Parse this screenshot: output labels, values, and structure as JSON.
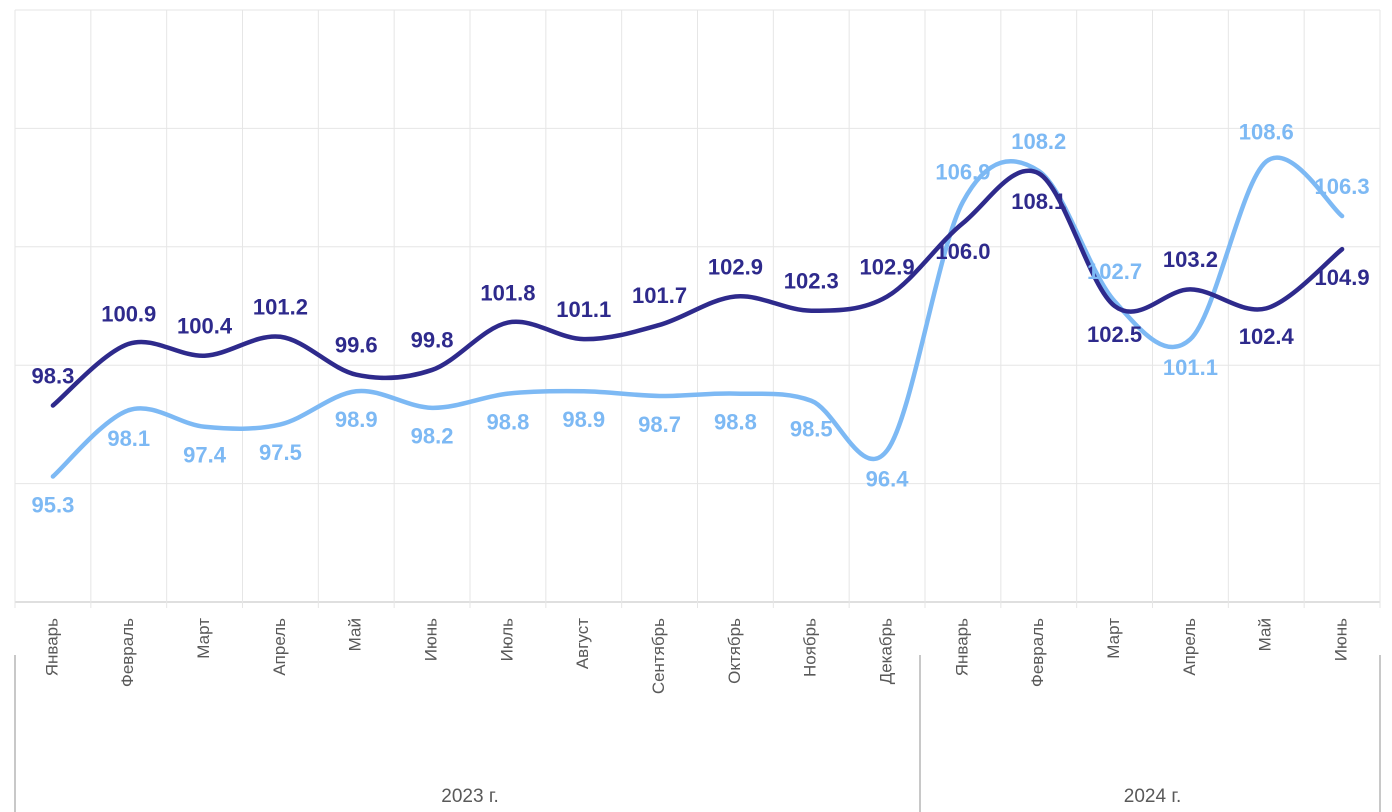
{
  "chart_data": {
    "type": "line",
    "groups": [
      {
        "name": "2023 г.",
        "categories": [
          "Январь",
          "Февраль",
          "Март",
          "Апрель",
          "Май",
          "Июнь",
          "Июль",
          "Август",
          "Сентябрь",
          "Октябрь",
          "Ноябрь",
          "Декабрь"
        ]
      },
      {
        "name": "2024 г.",
        "categories": [
          "Январь",
          "Февраль",
          "Март",
          "Апрель",
          "Май",
          "Июнь"
        ]
      }
    ],
    "series": [
      {
        "color": "#2e2a8c",
        "values": [
          98.3,
          100.9,
          100.4,
          101.2,
          99.6,
          99.8,
          101.8,
          101.1,
          101.7,
          102.9,
          102.3,
          102.9,
          106.0,
          108.1,
          102.5,
          103.2,
          102.4,
          104.9
        ],
        "value_labels": [
          "98.3",
          "100.9",
          "100.4",
          "101.2",
          "99.6",
          "99.8",
          "101.8",
          "101.1",
          "101.7",
          "102.9",
          "102.3",
          "102.9",
          "106.0",
          "108.1",
          "102.5",
          "103.2",
          "102.4",
          "104.9"
        ]
      },
      {
        "color": "#7db9f4",
        "values": [
          95.3,
          98.1,
          97.4,
          97.5,
          98.9,
          98.2,
          98.8,
          98.9,
          98.7,
          98.8,
          98.5,
          96.4,
          106.9,
          108.2,
          102.7,
          101.1,
          108.6,
          106.3
        ],
        "value_labels": [
          "95.3",
          "98.1",
          "97.4",
          "97.5",
          "98.9",
          "98.2",
          "98.8",
          "98.9",
          "98.7",
          "98.8",
          "98.5",
          "96.4",
          "106.9",
          "108.2",
          "102.7",
          "101.1",
          "108.6",
          "106.3"
        ]
      }
    ],
    "ylim": [
      90,
      115
    ],
    "yticks": [
      90,
      95,
      100,
      105,
      110,
      115
    ],
    "grid": true
  }
}
